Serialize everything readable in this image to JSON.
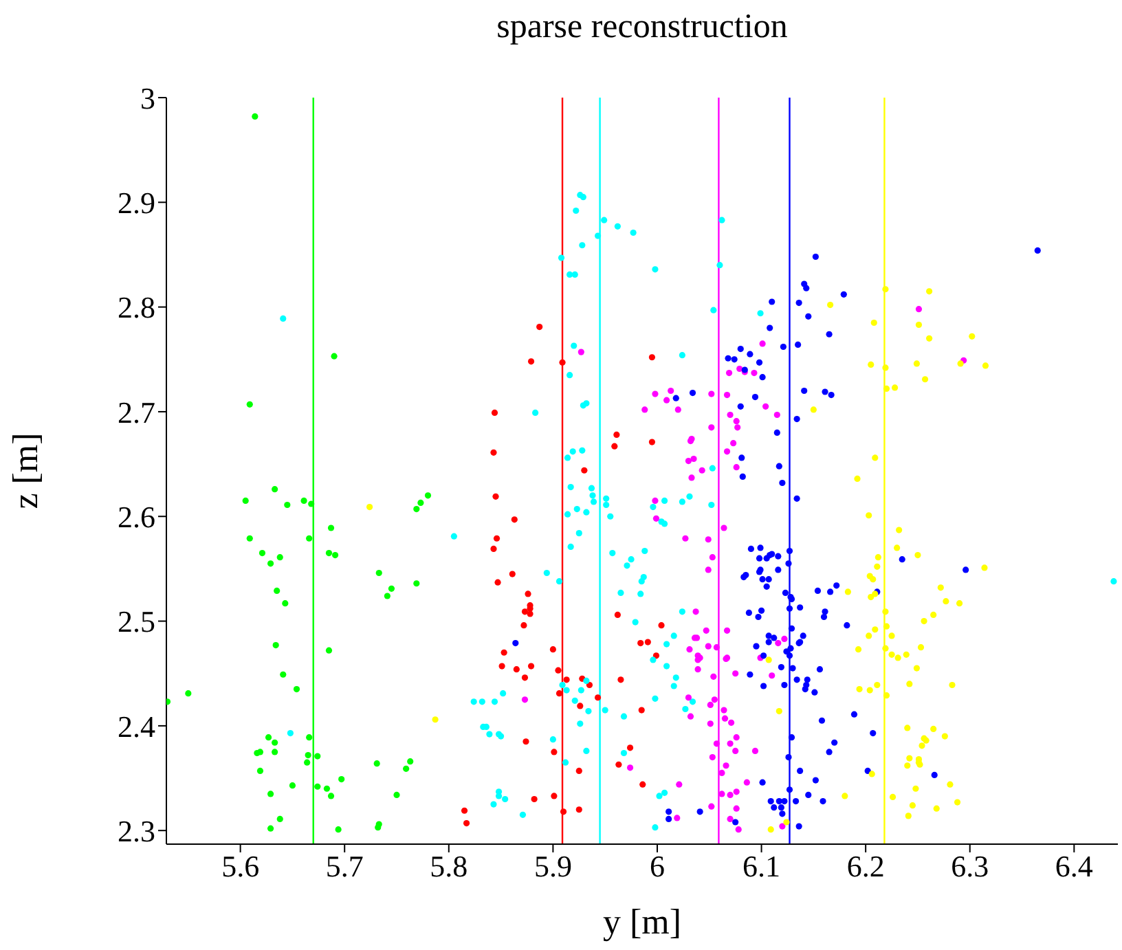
{
  "chart_data": {
    "type": "scatter",
    "title": "sparse reconstruction",
    "xlabel": "y [m]",
    "ylabel": "z [m]",
    "xlim": [
      5.529,
      6.442
    ],
    "ylim": [
      2.287,
      3
    ],
    "xticks": [
      5.6,
      5.7,
      5.8,
      5.9,
      6,
      6.1,
      6.2,
      6.3,
      6.4
    ],
    "yticks": [
      2.3,
      2.4,
      2.5,
      2.6,
      2.7,
      2.8,
      2.9,
      3
    ],
    "marker": "circle",
    "series": [
      {
        "color": "#00ff00",
        "x": [
          5.614,
          5.69,
          5.609,
          5.633,
          5.605,
          5.645,
          5.661,
          5.668,
          5.769,
          5.773,
          5.78,
          5.609,
          5.666,
          5.687,
          5.621,
          5.638,
          5.629,
          5.685,
          5.691,
          5.733,
          5.745,
          5.741,
          5.769,
          5.635,
          5.643,
          5.634,
          5.685,
          5.641,
          5.654,
          5.53,
          5.55,
          5.627,
          5.633,
          5.666,
          5.616,
          5.619,
          5.633,
          5.665,
          5.674,
          5.664,
          5.619,
          5.731,
          5.763,
          5.759,
          5.697,
          5.65,
          5.674,
          5.683,
          5.687,
          5.629,
          5.75,
          5.638,
          5.629,
          5.694,
          5.733,
          5.732
        ],
        "values": [
          2.982,
          2.753,
          2.707,
          2.626,
          2.615,
          2.611,
          2.615,
          2.612,
          2.607,
          2.613,
          2.62,
          2.579,
          2.579,
          2.589,
          2.565,
          2.561,
          2.555,
          2.565,
          2.563,
          2.546,
          2.531,
          2.524,
          2.536,
          2.529,
          2.517,
          2.477,
          2.472,
          2.449,
          2.435,
          2.423,
          2.431,
          2.389,
          2.384,
          2.389,
          2.374,
          2.375,
          2.375,
          2.372,
          2.371,
          2.365,
          2.357,
          2.364,
          2.366,
          2.359,
          2.349,
          2.343,
          2.342,
          2.34,
          2.333,
          2.335,
          2.334,
          2.311,
          2.302,
          2.301,
          2.306,
          2.303
        ]
      },
      {
        "color": "#ff0000",
        "x": [
          5.887,
          5.879,
          5.909,
          5.995,
          5.844,
          5.843,
          5.961,
          5.959,
          5.995,
          5.93,
          5.845,
          5.863,
          5.846,
          5.843,
          5.861,
          5.847,
          5.876,
          5.878,
          5.878,
          5.873,
          5.878,
          5.872,
          5.962,
          6.004,
          5.984,
          5.991,
          5.999,
          5.9,
          5.853,
          5.851,
          5.865,
          5.879,
          5.873,
          5.905,
          5.913,
          5.906,
          5.928,
          5.935,
          5.943,
          5.926,
          5.965,
          5.985,
          5.874,
          5.901,
          5.974,
          5.963,
          5.925,
          5.986,
          5.901,
          5.882,
          5.91,
          5.925,
          5.815,
          5.817
        ],
        "values": [
          2.781,
          2.748,
          2.747,
          2.752,
          2.699,
          2.661,
          2.678,
          2.667,
          2.671,
          2.644,
          2.619,
          2.597,
          2.579,
          2.569,
          2.545,
          2.537,
          2.526,
          2.515,
          2.512,
          2.509,
          2.507,
          2.496,
          2.506,
          2.496,
          2.479,
          2.48,
          2.467,
          2.473,
          2.47,
          2.457,
          2.454,
          2.457,
          2.446,
          2.453,
          2.444,
          2.431,
          2.445,
          2.439,
          2.427,
          2.419,
          2.444,
          2.415,
          2.385,
          2.375,
          2.379,
          2.363,
          2.357,
          2.344,
          2.333,
          2.33,
          2.318,
          2.32,
          2.319,
          2.307
        ]
      },
      {
        "color": "#00ffff",
        "x": [
          5.641,
          5.805,
          5.648,
          5.926,
          5.929,
          5.922,
          5.949,
          5.962,
          5.977,
          5.943,
          5.928,
          5.908,
          5.916,
          5.921,
          5.998,
          6.054,
          6.06,
          6.062,
          5.92,
          5.916,
          6.024,
          5.883,
          5.929,
          5.932,
          5.919,
          5.928,
          5.914,
          6.053,
          5.917,
          5.937,
          5.938,
          5.939,
          5.951,
          5.951,
          5.955,
          5.914,
          5.923,
          5.932,
          5.925,
          5.917,
          5.996,
          6.007,
          6.004,
          6.007,
          6.024,
          6.031,
          6.052,
          5.957,
          5.971,
          5.975,
          5.988,
          5.987,
          5.985,
          5.894,
          5.906,
          5.965,
          5.984,
          5.979,
          6.009,
          6.016,
          6.024,
          6.009,
          5.996,
          6.018,
          6.016,
          5.909,
          5.913,
          5.927,
          5.932,
          5.921,
          5.934,
          5.95,
          6.027,
          6.034,
          5.968,
          5.998,
          5.824,
          5.832,
          5.844,
          5.852,
          5.833,
          5.836,
          5.839,
          5.848,
          5.85,
          5.9,
          5.926,
          5.932,
          5.912,
          5.968,
          5.848,
          5.848,
          5.854,
          5.843,
          5.871,
          6.002,
          6.007,
          5.998,
          6.099,
          6.438
        ],
        "values": [
          2.789,
          2.581,
          2.393,
          2.907,
          2.905,
          2.892,
          2.883,
          2.877,
          2.871,
          2.868,
          2.859,
          2.847,
          2.831,
          2.831,
          2.836,
          2.797,
          2.84,
          2.883,
          2.763,
          2.735,
          2.754,
          2.699,
          2.706,
          2.708,
          2.662,
          2.663,
          2.656,
          2.646,
          2.628,
          2.627,
          2.62,
          2.614,
          2.617,
          2.611,
          2.6,
          2.602,
          2.607,
          2.604,
          2.584,
          2.571,
          2.609,
          2.615,
          2.595,
          2.593,
          2.614,
          2.619,
          2.611,
          2.565,
          2.553,
          2.559,
          2.567,
          2.542,
          2.538,
          2.546,
          2.538,
          2.527,
          2.526,
          2.499,
          2.478,
          2.486,
          2.509,
          2.457,
          2.463,
          2.446,
          2.438,
          2.439,
          2.434,
          2.434,
          2.443,
          2.424,
          2.414,
          2.415,
          2.416,
          2.423,
          2.409,
          2.426,
          2.423,
          2.423,
          2.423,
          2.431,
          2.399,
          2.399,
          2.392,
          2.392,
          2.39,
          2.387,
          2.402,
          2.376,
          2.365,
          2.374,
          2.337,
          2.333,
          2.33,
          2.325,
          2.315,
          2.333,
          2.336,
          2.303,
          2.794,
          2.538
        ]
      },
      {
        "color": "#ff00ff",
        "x": [
          5.927,
          5.998,
          6.013,
          6.009,
          5.988,
          6.02,
          6.052,
          6.052,
          6.032,
          6.033,
          6.03,
          6.035,
          6.033,
          6.043,
          5.998,
          5.999,
          6.027,
          6.049,
          6.053,
          6.049,
          6.037,
          6.047,
          6.036,
          6.038,
          6.031,
          6.039,
          6.041,
          6.039,
          6.049,
          6.057,
          6.039,
          6.054,
          5.873,
          6.03,
          6.032,
          6.051,
          6.055,
          6.051,
          6.053,
          6.057,
          5.974,
          6.021,
          6.052,
          6.019,
          6.067,
          6.069,
          6.079,
          6.084,
          6.093,
          6.101,
          6.104,
          6.115,
          6.07,
          6.076,
          6.077,
          6.073,
          6.067,
          6.076,
          6.064,
          6.067,
          6.067,
          6.066,
          6.075,
          6.099,
          6.116,
          6.122,
          6.11,
          6.064,
          6.065,
          6.071,
          6.076,
          6.07,
          6.075,
          6.062,
          6.066,
          6.062,
          6.07,
          6.076,
          6.076,
          6.07,
          6.078,
          6.086,
          6.094,
          6.251,
          6.294,
          6.12
        ],
        "values": [
          2.757,
          2.717,
          2.72,
          2.711,
          2.702,
          2.702,
          2.717,
          2.685,
          2.672,
          2.674,
          2.653,
          2.655,
          2.637,
          2.644,
          2.615,
          2.598,
          2.579,
          2.578,
          2.561,
          2.549,
          2.509,
          2.491,
          2.484,
          2.484,
          2.473,
          2.467,
          2.465,
          2.463,
          2.476,
          2.475,
          2.454,
          2.447,
          2.425,
          2.427,
          2.409,
          2.42,
          2.425,
          2.402,
          2.37,
          2.383,
          2.36,
          2.344,
          2.323,
          2.312,
          2.716,
          2.737,
          2.741,
          2.738,
          2.737,
          2.765,
          2.705,
          2.697,
          2.697,
          2.691,
          2.685,
          2.67,
          2.662,
          2.647,
          2.589,
          2.491,
          2.465,
          2.464,
          2.45,
          2.465,
          2.479,
          2.483,
          2.448,
          2.415,
          2.407,
          2.403,
          2.389,
          2.383,
          2.376,
          2.355,
          2.362,
          2.335,
          2.334,
          2.337,
          2.321,
          2.311,
          2.301,
          2.346,
          2.376,
          2.798,
          2.749,
          2.304
        ]
      },
      {
        "color": "#0000ff",
        "x": [
          5.864,
          6.018,
          6.034,
          6.011,
          6.011,
          6.041,
          6.365,
          6.152,
          6.141,
          6.143,
          6.179,
          6.11,
          6.136,
          6.145,
          6.108,
          6.165,
          6.121,
          6.135,
          6.068,
          6.074,
          6.08,
          6.089,
          6.098,
          6.084,
          6.101,
          6.08,
          6.094,
          6.141,
          6.161,
          6.167,
          6.134,
          6.115,
          6.081,
          6.082,
          6.117,
          6.12,
          6.134,
          6.09,
          6.099,
          6.098,
          6.105,
          6.108,
          6.11,
          6.116,
          6.127,
          6.126,
          6.098,
          6.099,
          6.107,
          6.101,
          6.116,
          6.085,
          6.083,
          6.105,
          6.235,
          6.296,
          6.123,
          6.128,
          6.129,
          6.137,
          6.154,
          6.166,
          6.172,
          6.211,
          6.127,
          6.088,
          6.1,
          6.097,
          6.161,
          6.16,
          6.182,
          6.129,
          6.107,
          6.112,
          6.107,
          6.14,
          6.137,
          6.136,
          6.095,
          6.102,
          6.124,
          6.128,
          6.127,
          6.119,
          6.13,
          6.156,
          6.089,
          6.102,
          6.122,
          6.134,
          6.144,
          6.143,
          6.142,
          6.151,
          6.189,
          6.158,
          6.207,
          6.129,
          6.17,
          6.165,
          6.126,
          6.202,
          6.266,
          6.137,
          6.101,
          6.152,
          6.127,
          6.145,
          6.109,
          6.117,
          6.122,
          6.112,
          6.119,
          6.12,
          6.133,
          6.159,
          6.075,
          6.136
        ],
        "values": [
          2.479,
          2.713,
          2.718,
          2.318,
          2.311,
          2.318,
          2.854,
          2.848,
          2.822,
          2.818,
          2.812,
          2.805,
          2.804,
          2.791,
          2.78,
          2.774,
          2.762,
          2.764,
          2.751,
          2.75,
          2.76,
          2.755,
          2.747,
          2.74,
          2.733,
          2.705,
          2.714,
          2.72,
          2.719,
          2.716,
          2.693,
          2.68,
          2.656,
          2.638,
          2.648,
          2.632,
          2.617,
          2.569,
          2.57,
          2.56,
          2.56,
          2.563,
          2.564,
          2.562,
          2.567,
          2.555,
          2.547,
          2.549,
          2.54,
          2.54,
          2.549,
          2.544,
          2.542,
          2.533,
          2.559,
          2.549,
          2.527,
          2.523,
          2.521,
          2.513,
          2.529,
          2.528,
          2.534,
          2.528,
          2.512,
          2.508,
          2.51,
          2.504,
          2.509,
          2.504,
          2.496,
          2.493,
          2.486,
          2.484,
          2.48,
          2.486,
          2.48,
          2.479,
          2.476,
          2.467,
          2.471,
          2.474,
          2.467,
          2.456,
          2.455,
          2.454,
          2.449,
          2.438,
          2.439,
          2.444,
          2.444,
          2.439,
          2.435,
          2.432,
          2.411,
          2.405,
          2.393,
          2.389,
          2.384,
          2.375,
          2.37,
          2.357,
          2.353,
          2.357,
          2.346,
          2.348,
          2.339,
          2.334,
          2.328,
          2.328,
          2.328,
          2.322,
          2.322,
          2.316,
          2.328,
          2.328,
          2.308,
          2.304
        ]
      },
      {
        "color": "#ffff00",
        "x": [
          5.724,
          5.787,
          6.219,
          6.261,
          6.166,
          6.208,
          6.251,
          6.261,
          6.302,
          6.205,
          6.219,
          6.249,
          6.291,
          6.315,
          6.257,
          6.22,
          6.228,
          6.15,
          6.209,
          6.192,
          6.203,
          6.232,
          6.23,
          6.25,
          6.212,
          6.211,
          6.204,
          6.207,
          6.314,
          6.183,
          6.205,
          6.209,
          6.272,
          6.277,
          6.29,
          6.219,
          6.265,
          6.256,
          6.22,
          6.209,
          6.203,
          6.225,
          6.193,
          6.219,
          6.253,
          6.225,
          6.231,
          6.239,
          6.107,
          6.249,
          6.211,
          6.204,
          6.194,
          6.22,
          6.242,
          6.283,
          6.117,
          6.24,
          6.265,
          6.256,
          6.258,
          6.276,
          6.254,
          6.242,
          6.251,
          6.251,
          6.252,
          6.24,
          6.206,
          6.281,
          6.18,
          6.226,
          6.248,
          6.288,
          6.245,
          6.268,
          6.241,
          6.124,
          6.109
        ],
        "values": [
          2.609,
          2.406,
          2.817,
          2.815,
          2.802,
          2.785,
          2.783,
          2.77,
          2.772,
          2.745,
          2.742,
          2.746,
          2.746,
          2.744,
          2.731,
          2.722,
          2.723,
          2.702,
          2.656,
          2.636,
          2.601,
          2.587,
          2.57,
          2.563,
          2.561,
          2.552,
          2.543,
          2.54,
          2.551,
          2.528,
          2.523,
          2.526,
          2.532,
          2.519,
          2.517,
          2.509,
          2.506,
          2.5,
          2.495,
          2.492,
          2.486,
          2.486,
          2.473,
          2.474,
          2.475,
          2.468,
          2.465,
          2.468,
          2.463,
          2.455,
          2.439,
          2.434,
          2.435,
          2.429,
          2.44,
          2.439,
          2.414,
          2.398,
          2.397,
          2.388,
          2.386,
          2.39,
          2.381,
          2.369,
          2.368,
          2.365,
          2.363,
          2.362,
          2.354,
          2.344,
          2.333,
          2.332,
          2.34,
          2.327,
          2.324,
          2.321,
          2.314,
          2.308,
          2.301
        ]
      }
    ],
    "ref_lines": [
      {
        "axis": "x",
        "value": 5.67,
        "color": "#00ff00"
      },
      {
        "axis": "x",
        "value": 5.909,
        "color": "#ff0000"
      },
      {
        "axis": "x",
        "value": 5.945,
        "color": "#00ffff"
      },
      {
        "axis": "x",
        "value": 6.059,
        "color": "#ff00ff"
      },
      {
        "axis": "x",
        "value": 6.127,
        "color": "#0000ff"
      },
      {
        "axis": "x",
        "value": 6.218,
        "color": "#ffff00"
      }
    ]
  }
}
